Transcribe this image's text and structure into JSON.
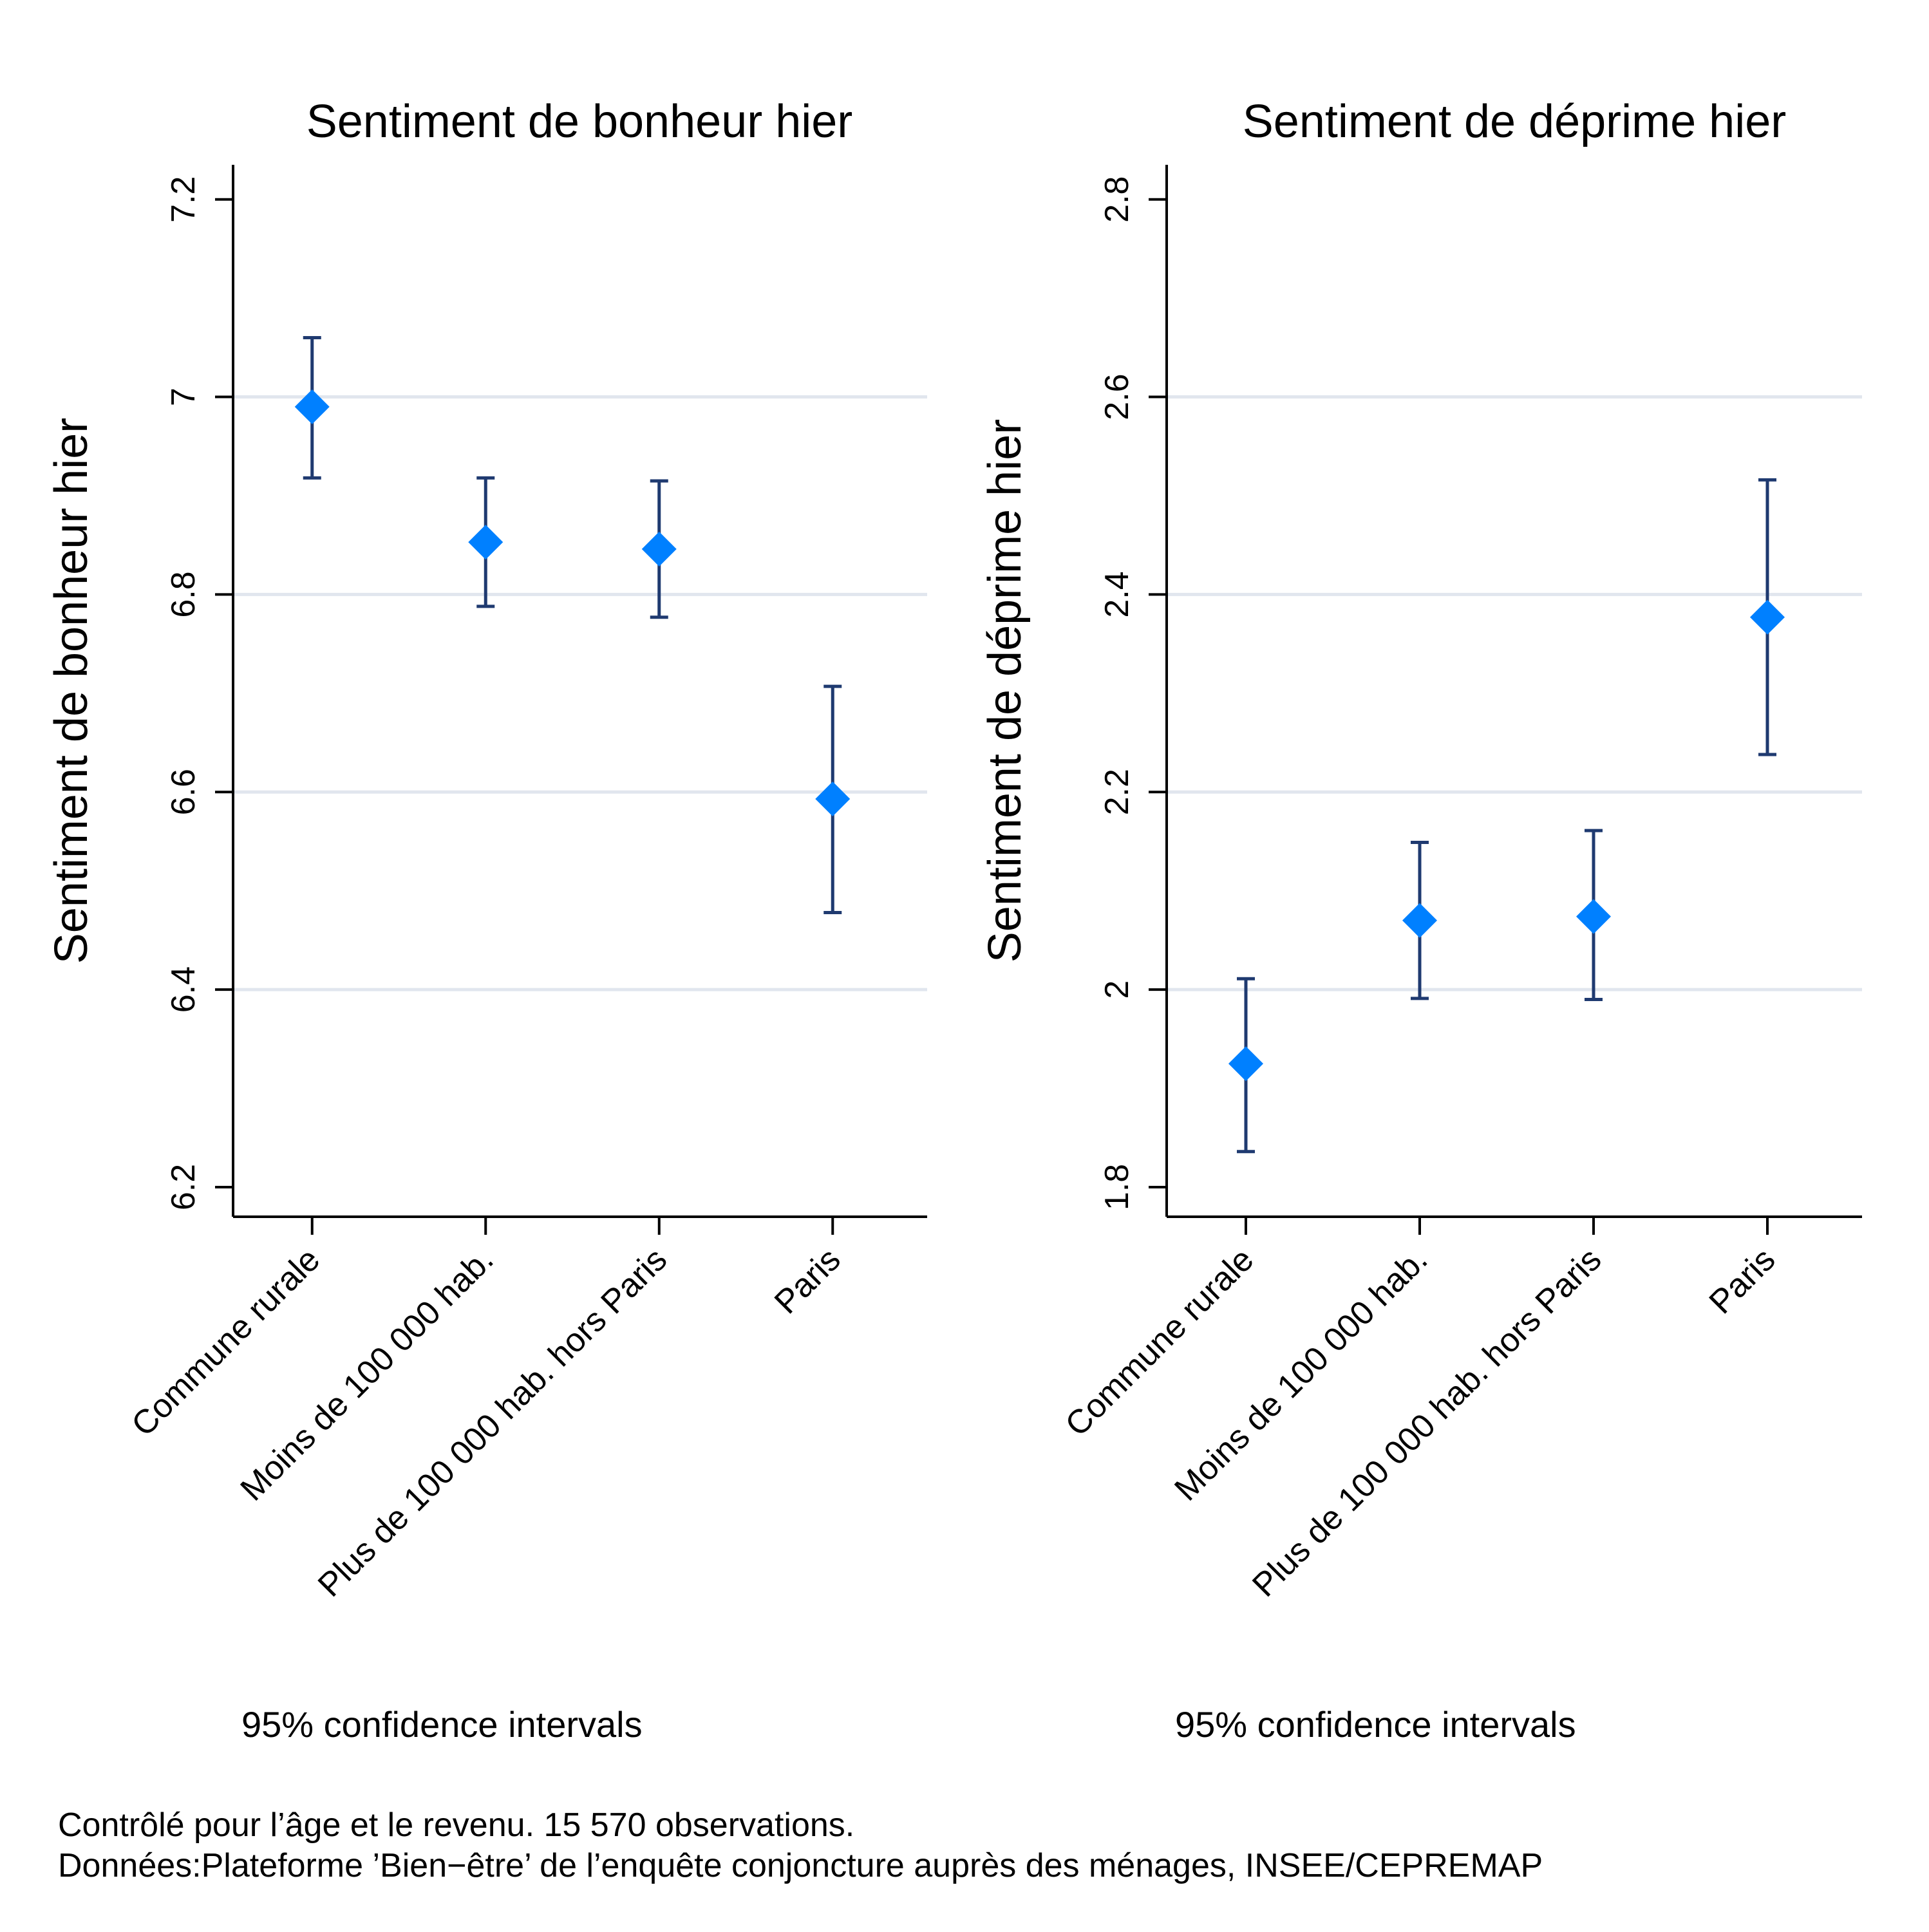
{
  "chart_data": [
    {
      "type": "scatter",
      "title": "Sentiment de bonheur hier",
      "ylabel": "Sentiment de bonheur hier",
      "categories": [
        "Commune rurale",
        "Moins de 100 000 hab.",
        "Plus de 100 000 hab. hors Paris",
        "Paris"
      ],
      "values": [
        6.99,
        6.853,
        6.846,
        6.593
      ],
      "ci_lower": [
        6.918,
        6.788,
        6.777,
        6.478
      ],
      "ci_upper": [
        7.06,
        6.918,
        6.915,
        6.707
      ],
      "yticks": [
        "6.2",
        "6.4",
        "6.6",
        "6.8",
        "7",
        "7.2"
      ],
      "ylim": [
        6.17,
        7.235
      ],
      "grid": true,
      "note": "95% confidence intervals"
    },
    {
      "type": "scatter",
      "title": "Sentiment de déprime hier",
      "ylabel": "Sentiment de déprime hier",
      "categories": [
        "Commune rurale",
        "Moins de 100 000 hab.",
        "Plus de 100 000 hab. hors Paris",
        "Paris"
      ],
      "values": [
        1.925,
        2.07,
        2.074,
        2.377
      ],
      "ci_lower": [
        1.836,
        1.991,
        1.99,
        2.238
      ],
      "ci_upper": [
        2.011,
        2.149,
        2.161,
        2.516
      ],
      "yticks": [
        "1.8",
        "2",
        "2.2",
        "2.4",
        "2.6",
        "2.8"
      ],
      "ylim": [
        1.77,
        2.835
      ],
      "grid": true,
      "note": "95% confidence intervals"
    }
  ],
  "footer": {
    "line1": "Contrôlé pour l’âge et le revenu. 15 570 observations.",
    "line2": "Données:Plateforme ’Bien−être’ de l’enquête conjoncture auprès des ménages, INSEE/CEPREMAP"
  },
  "colors": {
    "marker": "#0080FF",
    "ci": "#1F3A70",
    "grid": "#E1E6EE",
    "axis": "#000000"
  }
}
